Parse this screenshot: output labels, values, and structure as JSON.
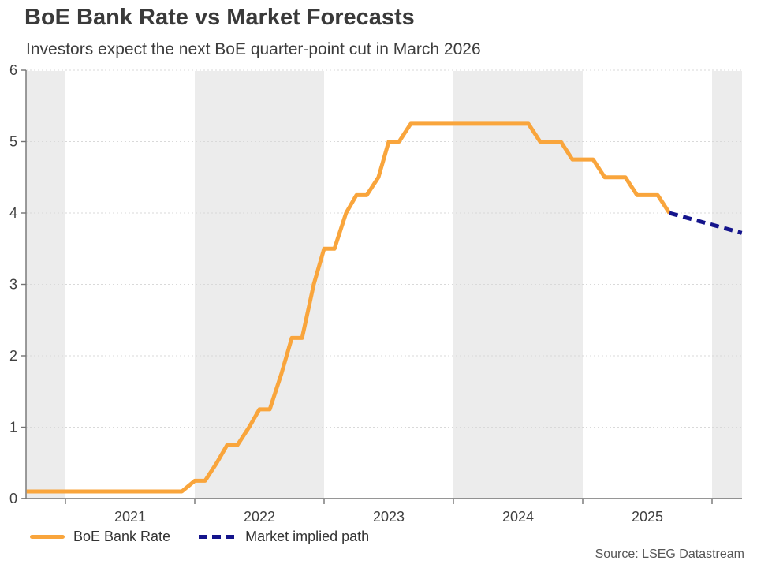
{
  "chart_data": {
    "type": "line",
    "title": "BoE Bank Rate vs Market Forecasts",
    "subtitle": "Investors expect the next BoE quarter-point cut in March 2026",
    "source_note": "Source: LSEG Datastream",
    "x_unit": "decimal_year",
    "y_unit": "percent",
    "x_domain": [
      2020.695,
      2026.235
    ],
    "ylim": [
      0,
      6
    ],
    "y_ticks": [
      0,
      1,
      2,
      3,
      4,
      5,
      6
    ],
    "x_ticks_years": [
      2021,
      2022,
      2023,
      2024,
      2025,
      2026
    ],
    "x_tick_labels": [
      "2021",
      "2022",
      "2023",
      "2024",
      "2025"
    ],
    "grid": "horizontal-dashed",
    "legend_position": "bottom-left",
    "colors": {
      "band": "#ececec",
      "grid": "#d9d9d9",
      "axis": "#737373",
      "tick_label": "#404040"
    },
    "shade_bands": [
      [
        2020.695,
        2021
      ],
      [
        2022,
        2023
      ],
      [
        2024,
        2025
      ],
      [
        2026,
        2026.235
      ]
    ],
    "series": [
      {
        "name": "BoE Bank Rate",
        "color": "#F9A53C",
        "dash": "solid",
        "points": [
          [
            2020.7,
            0.1
          ],
          [
            2021.9,
            0.1
          ],
          [
            2022.0,
            0.25
          ],
          [
            2022.08,
            0.25
          ],
          [
            2022.17,
            0.5
          ],
          [
            2022.25,
            0.75
          ],
          [
            2022.33,
            0.75
          ],
          [
            2022.42,
            1.0
          ],
          [
            2022.5,
            1.25
          ],
          [
            2022.58,
            1.25
          ],
          [
            2022.67,
            1.75
          ],
          [
            2022.75,
            2.25
          ],
          [
            2022.83,
            2.25
          ],
          [
            2022.92,
            3.0
          ],
          [
            2023.0,
            3.5
          ],
          [
            2023.08,
            3.5
          ],
          [
            2023.17,
            4.0
          ],
          [
            2023.25,
            4.25
          ],
          [
            2023.33,
            4.25
          ],
          [
            2023.42,
            4.5
          ],
          [
            2023.5,
            5.0
          ],
          [
            2023.58,
            5.0
          ],
          [
            2023.67,
            5.25
          ],
          [
            2024.58,
            5.25
          ],
          [
            2024.67,
            5.0
          ],
          [
            2024.83,
            5.0
          ],
          [
            2024.92,
            4.75
          ],
          [
            2025.08,
            4.75
          ],
          [
            2025.17,
            4.5
          ],
          [
            2025.33,
            4.5
          ],
          [
            2025.42,
            4.25
          ],
          [
            2025.58,
            4.25
          ],
          [
            2025.67,
            4.0
          ]
        ]
      },
      {
        "name": "Market implied path",
        "color": "#14148C",
        "dash": "dashed",
        "points": [
          [
            2025.67,
            4.0
          ],
          [
            2026.23,
            3.72
          ]
        ]
      }
    ]
  }
}
